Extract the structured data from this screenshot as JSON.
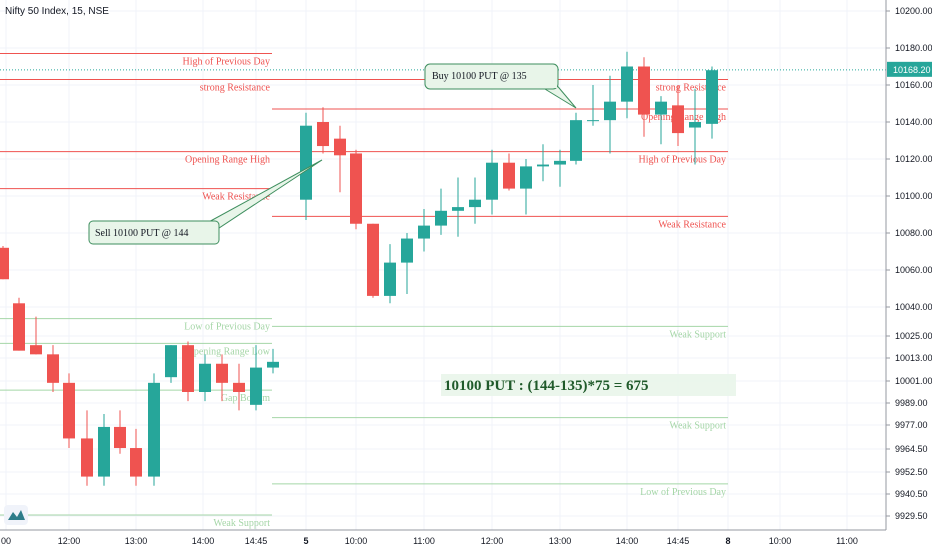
{
  "chart_data": {
    "type": "candlestick",
    "title": "Nifty 50 Index, 15, NSE",
    "current_price": "10168.20",
    "colors": {
      "up": "#26a69a",
      "down": "#ef5350",
      "support": "#a5d6a7",
      "resistance": "#ef5350",
      "current": "#26a69a"
    },
    "y_ticks": [
      "10200.00",
      "10180.00",
      "10160.00",
      "10140.00",
      "10120.00",
      "10100.00",
      "10080.00",
      "10060.00",
      "10040.00",
      "10025.00",
      "10013.00",
      "10001.00",
      "9989.00",
      "9977.00",
      "9964.50",
      "9952.50",
      "9940.50",
      "9929.50"
    ],
    "x_ticks": [
      "00",
      "12:00",
      "13:00",
      "14:00",
      "14:45",
      "5",
      "10:00",
      "11:00",
      "12:00",
      "13:00",
      "14:00",
      "14:45",
      "8",
      "10:00",
      "11:00"
    ],
    "candles": [
      {
        "o": 10072,
        "h": 10073,
        "l": 10055,
        "c": 10055
      },
      {
        "o": 10042,
        "h": 10045,
        "l": 10017,
        "c": 10017
      },
      {
        "o": 10020,
        "h": 10035,
        "l": 10015,
        "c": 10015
      },
      {
        "o": 10015,
        "h": 10020,
        "l": 9995,
        "c": 10000
      },
      {
        "o": 10000,
        "h": 10005,
        "l": 9965,
        "c": 9970
      },
      {
        "o": 9970,
        "h": 9985,
        "l": 9945,
        "c": 9950
      },
      {
        "o": 9950,
        "h": 9983,
        "l": 9945,
        "c": 9976
      },
      {
        "o": 9976,
        "h": 9985,
        "l": 9962,
        "c": 9965
      },
      {
        "o": 9965,
        "h": 9975,
        "l": 9945,
        "c": 9950
      },
      {
        "o": 9950,
        "h": 10005,
        "l": 9945,
        "c": 10000
      },
      {
        "o": 10003,
        "h": 10020,
        "l": 10000,
        "c": 10020
      },
      {
        "o": 10020,
        "h": 10022,
        "l": 9990,
        "c": 9995
      },
      {
        "o": 9995,
        "h": 10015,
        "l": 9990,
        "c": 10010
      },
      {
        "o": 10010,
        "h": 10015,
        "l": 9990,
        "c": 10000
      },
      {
        "o": 10000,
        "h": 10010,
        "l": 9985,
        "c": 9995
      },
      {
        "o": 9988,
        "h": 10020,
        "l": 9985,
        "c": 10008
      },
      {
        "o": 10008,
        "h": 10018,
        "l": 10005,
        "c": 10011
      },
      {
        "o": 10098,
        "h": 10145,
        "l": 10087,
        "c": 10138
      },
      {
        "o": 10140,
        "h": 10148,
        "l": 10123,
        "c": 10127
      },
      {
        "o": 10131,
        "h": 10138,
        "l": 10102,
        "c": 10122
      },
      {
        "o": 10123,
        "h": 10125,
        "l": 10082,
        "c": 10085
      },
      {
        "o": 10085,
        "h": 10085,
        "l": 10045,
        "c": 10046
      },
      {
        "o": 10046,
        "h": 10074,
        "l": 10042,
        "c": 10064
      },
      {
        "o": 10064,
        "h": 10080,
        "l": 10047,
        "c": 10077
      },
      {
        "o": 10077,
        "h": 10093,
        "l": 10070,
        "c": 10084
      },
      {
        "o": 10084,
        "h": 10104,
        "l": 10079,
        "c": 10092
      },
      {
        "o": 10092,
        "h": 10110,
        "l": 10078,
        "c": 10094
      },
      {
        "o": 10094,
        "h": 10110,
        "l": 10085,
        "c": 10098
      },
      {
        "o": 10098,
        "h": 10125,
        "l": 10090,
        "c": 10118
      },
      {
        "o": 10118,
        "h": 10123,
        "l": 10103,
        "c": 10104
      },
      {
        "o": 10104,
        "h": 10120,
        "l": 10090,
        "c": 10116
      },
      {
        "o": 10116,
        "h": 10128,
        "l": 10108,
        "c": 10117
      },
      {
        "o": 10117,
        "h": 10125,
        "l": 10105,
        "c": 10119
      },
      {
        "o": 10119,
        "h": 10145,
        "l": 10117,
        "c": 10141
      },
      {
        "o": 10141,
        "h": 10160,
        "l": 10138,
        "c": 10141
      },
      {
        "o": 10141,
        "h": 10165,
        "l": 10123,
        "c": 10151
      },
      {
        "o": 10151,
        "h": 10178,
        "l": 10142,
        "c": 10170
      },
      {
        "o": 10170,
        "h": 10175,
        "l": 10132,
        "c": 10144
      },
      {
        "o": 10144,
        "h": 10154,
        "l": 10128,
        "c": 10151
      },
      {
        "o": 10149,
        "h": 10160,
        "l": 10127,
        "c": 10134
      },
      {
        "o": 10137,
        "h": 10158,
        "l": 10117,
        "c": 10140
      },
      {
        "o": 10139,
        "h": 10170,
        "l": 10131,
        "c": 10168
      }
    ],
    "levels": [
      {
        "name": "High of Previous Day",
        "y": 10177,
        "x1": 0,
        "x2": 272,
        "label_x": 270,
        "kind": "resistance"
      },
      {
        "name": "strong Resistance",
        "y": 10163,
        "x1": 0,
        "x2": 272,
        "label_x": 270,
        "kind": "resistance"
      },
      {
        "name": "Opening Range High",
        "y": 10124,
        "x1": 0,
        "x2": 272,
        "label_x": 270,
        "kind": "resistance"
      },
      {
        "name": "Weak Resistance",
        "y": 10104,
        "x1": 0,
        "x2": 272,
        "label_x": 270,
        "kind": "resistance"
      },
      {
        "name": "Low of Previous Day",
        "y": 10034,
        "x1": 0,
        "x2": 272,
        "label_x": 270,
        "kind": "support"
      },
      {
        "name": "Opening Range Low",
        "y": 10021,
        "x1": 0,
        "x2": 272,
        "label_x": 270,
        "kind": "support"
      },
      {
        "name": "Gap Bottom",
        "y": 9996,
        "x1": 0,
        "x2": 272,
        "label_x": 270,
        "kind": "support"
      },
      {
        "name": "Weak Support",
        "y": 9930,
        "x1": 0,
        "x2": 272,
        "label_x": 270,
        "kind": "support"
      },
      {
        "name": "strong Resistance",
        "y": 10163,
        "x1": 272,
        "x2": 728,
        "label_x": 726,
        "kind": "resistance"
      },
      {
        "name": "Opening Range High",
        "y": 10147,
        "x1": 272,
        "x2": 728,
        "label_x": 726,
        "kind": "resistance"
      },
      {
        "name": "High of Previous Day",
        "y": 10124,
        "x1": 272,
        "x2": 728,
        "label_x": 726,
        "kind": "resistance"
      },
      {
        "name": "Weak Resistance",
        "y": 10089,
        "x1": 272,
        "x2": 728,
        "label_x": 726,
        "kind": "resistance"
      },
      {
        "name": "Weak Support",
        "y": 10030,
        "x1": 272,
        "x2": 728,
        "label_x": 726,
        "kind": "support"
      },
      {
        "name": "Weak Support",
        "y": 9981,
        "x1": 272,
        "x2": 728,
        "label_x": 726,
        "kind": "support"
      },
      {
        "name": "Low of Previous Day",
        "y": 9946,
        "x1": 272,
        "x2": 728,
        "label_x": 726,
        "kind": "support"
      }
    ],
    "annotations": {
      "sell": "Sell 10100 PUT @ 144",
      "buy": "Buy 10100 PUT @ 135",
      "calc": "10100 PUT : (144-135)*75 = 675"
    }
  }
}
